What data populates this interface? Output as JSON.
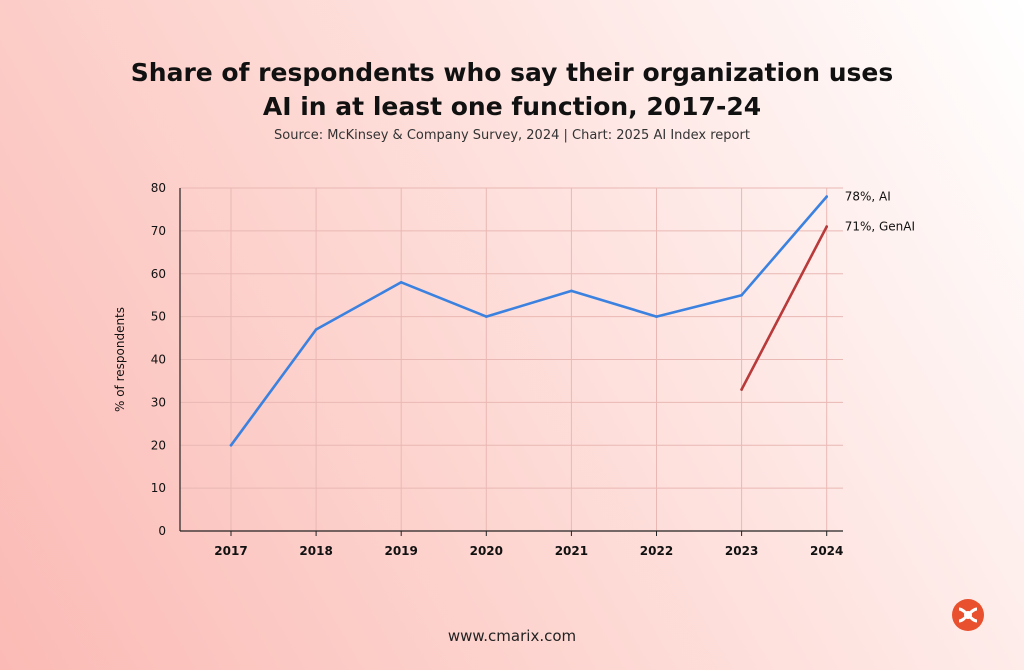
{
  "chart_data": {
    "type": "line",
    "title_lines": [
      "Share of respondents who say their organization uses",
      "AI in at least one function, 2017-24"
    ],
    "subtitle": "Source: McKinsey & Company Survey, 2024 | Chart: 2025 AI Index report",
    "ylabel": "% of respondents",
    "xlabel": "",
    "x": [
      "2017",
      "2018",
      "2019",
      "2020",
      "2021",
      "2022",
      "2023",
      "2024"
    ],
    "ylim": [
      0,
      80
    ],
    "yticks": [
      0,
      10,
      20,
      30,
      40,
      50,
      60,
      70,
      80
    ],
    "grid": true,
    "series": [
      {
        "label": "78%, AI",
        "color": "#3b82e0",
        "points": [
          {
            "x": "2017",
            "y": 20
          },
          {
            "x": "2018",
            "y": 47
          },
          {
            "x": "2019",
            "y": 58
          },
          {
            "x": "2020",
            "y": 50
          },
          {
            "x": "2021",
            "y": 56
          },
          {
            "x": "2022",
            "y": 50
          },
          {
            "x": "2023",
            "y": 55
          },
          {
            "x": "2024",
            "y": 78
          }
        ]
      },
      {
        "label": "71%, GenAI",
        "color": "#b83a3a",
        "points": [
          {
            "x": "2023",
            "y": 33
          },
          {
            "x": "2024",
            "y": 71
          }
        ]
      }
    ]
  },
  "footer": {
    "website": "www.cmarix.com"
  },
  "logo": {
    "icon": "cmarix-logo-icon",
    "color": "#e8502e"
  }
}
